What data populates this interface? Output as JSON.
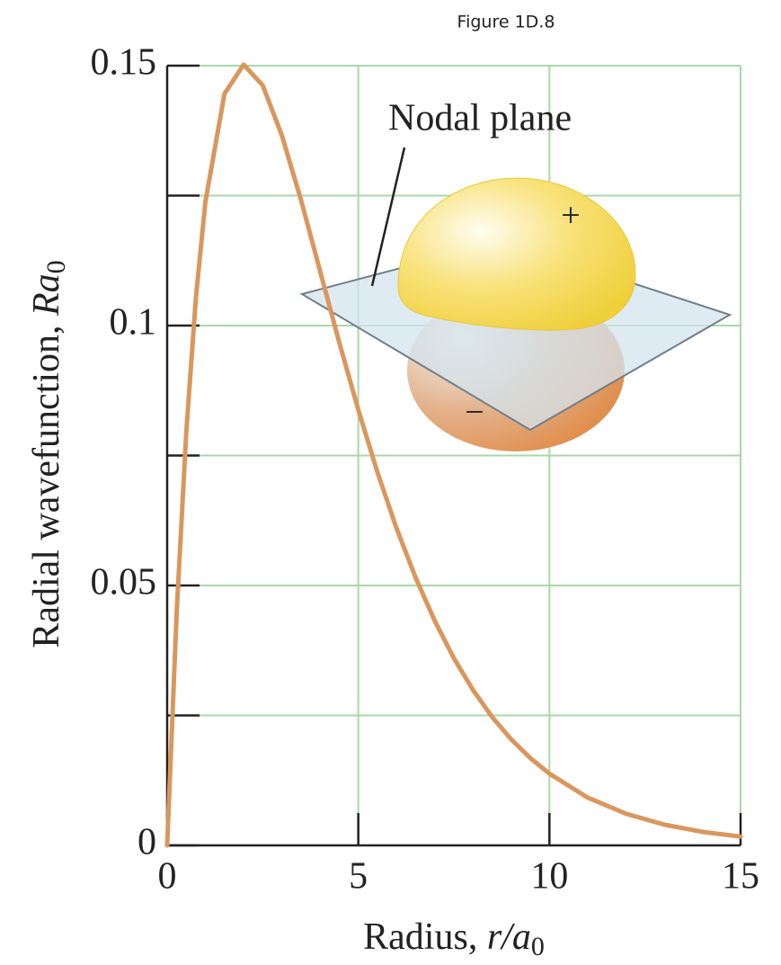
{
  "chart_data": {
    "type": "line",
    "title": "Figure 1D.8",
    "x_label": [
      "Radius, ",
      "r/a",
      "0"
    ],
    "y_label": [
      "Radial wavefunction, ",
      "Ra",
      "0"
    ],
    "annotations": [
      "Nodal plane",
      "+",
      "−"
    ],
    "x": [
      0,
      0.25,
      0.5,
      0.75,
      1,
      1.5,
      2,
      2.5,
      3,
      3.5,
      4,
      4.5,
      5,
      5.5,
      6,
      6.5,
      7,
      7.5,
      8,
      8.5,
      9,
      9.5,
      10,
      11,
      12,
      13,
      14,
      15
    ],
    "values": [
      0,
      0.045,
      0.0795,
      0.1052,
      0.1238,
      0.1446,
      0.1502,
      0.1462,
      0.1366,
      0.1242,
      0.1105,
      0.0968,
      0.0838,
      0.0718,
      0.061,
      0.0515,
      0.0432,
      0.036,
      0.0299,
      0.0247,
      0.0204,
      0.0168,
      0.0138,
      0.0092,
      0.0061,
      0.004,
      0.0026,
      0.0017
    ],
    "color": "#d9975e",
    "grid_color": "#a8d8a8",
    "xlim": [
      0,
      15
    ],
    "xticks": [
      0,
      5,
      10,
      15
    ],
    "ylim": [
      0,
      0.15
    ],
    "yticks": [
      0,
      0.05,
      0.1,
      0.15
    ],
    "yminor": [
      0.025,
      0.075,
      0.125
    ],
    "grid": true
  }
}
